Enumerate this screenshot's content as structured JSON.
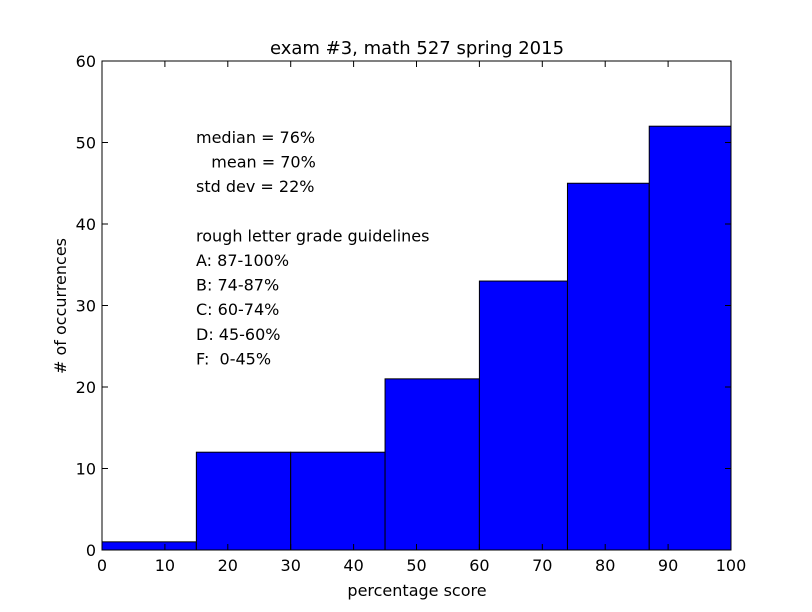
{
  "chart_data": {
    "type": "bar",
    "title": "exam #3, math 527 spring 2015",
    "xlabel": "percentage score",
    "ylabel": "# of occurrences",
    "xlim": [
      0,
      100
    ],
    "ylim": [
      0,
      60
    ],
    "xticks": [
      "0",
      "10",
      "20",
      "30",
      "40",
      "50",
      "60",
      "70",
      "80",
      "90",
      "100"
    ],
    "yticks": [
      "0",
      "10",
      "20",
      "30",
      "40",
      "50",
      "60"
    ],
    "bins": [
      {
        "from": 0,
        "to": 15,
        "value": 1
      },
      {
        "from": 15,
        "to": 30,
        "value": 12
      },
      {
        "from": 30,
        "to": 45,
        "value": 12
      },
      {
        "from": 45,
        "to": 60,
        "value": 21
      },
      {
        "from": 60,
        "to": 74,
        "value": 33
      },
      {
        "from": 74,
        "to": 87,
        "value": 45
      },
      {
        "from": 87,
        "to": 100,
        "value": 52
      }
    ],
    "bar_color": "#0000ff",
    "grid": false,
    "legend": "none",
    "annotations": [
      "median = 76%",
      "   mean = 70%",
      "std dev = 22%",
      "",
      "rough letter grade guidelines",
      "A: 87-100%",
      "B: 74-87%",
      "C: 60-74%",
      "D: 45-60%",
      "F:  0-45%"
    ]
  }
}
